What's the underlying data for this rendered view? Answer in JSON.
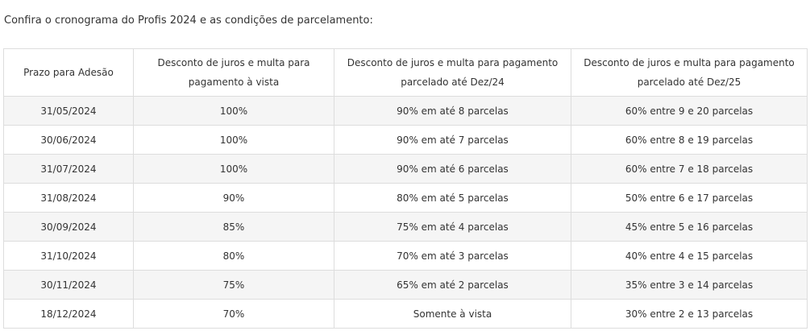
{
  "intro_text": "Confira o cronograma do Profis 2024 e as condições de parcelamento:",
  "table": {
    "headers": [
      "Prazo para Adesão",
      "Desconto de juros e multa para pagamento à vista",
      "Desconto de juros e multa para pagamento parcelado até Dez/24",
      "Desconto de juros e multa para pagamento parcelado até Dez/25"
    ],
    "rows": [
      [
        "31/05/2024",
        "100%",
        "90% em até 8 parcelas",
        "60% entre 9 e 20 parcelas"
      ],
      [
        "30/06/2024",
        "100%",
        "90% em até 7 parcelas",
        "60% entre 8 e 19 parcelas"
      ],
      [
        "31/07/2024",
        "100%",
        "90% em até 6 parcelas",
        "60% entre 7 e 18 parcelas"
      ],
      [
        "31/08/2024",
        "90%",
        "80% em até 5 parcelas",
        "50% entre 6 e 17 parcelas"
      ],
      [
        "30/09/2024",
        "85%",
        "75% em até 4 parcelas",
        "45% entre 5 e 16 parcelas"
      ],
      [
        "31/10/2024",
        "80%",
        "70% em até 3 parcelas",
        "40% entre 4 e 15 parcelas"
      ],
      [
        "30/11/2024",
        "75%",
        "65% em até 2 parcelas",
        "35% entre 3 e 14 parcelas"
      ],
      [
        "18/12/2024",
        "70%",
        "Somente à vista",
        "30% entre 2 e 13 parcelas"
      ]
    ]
  }
}
